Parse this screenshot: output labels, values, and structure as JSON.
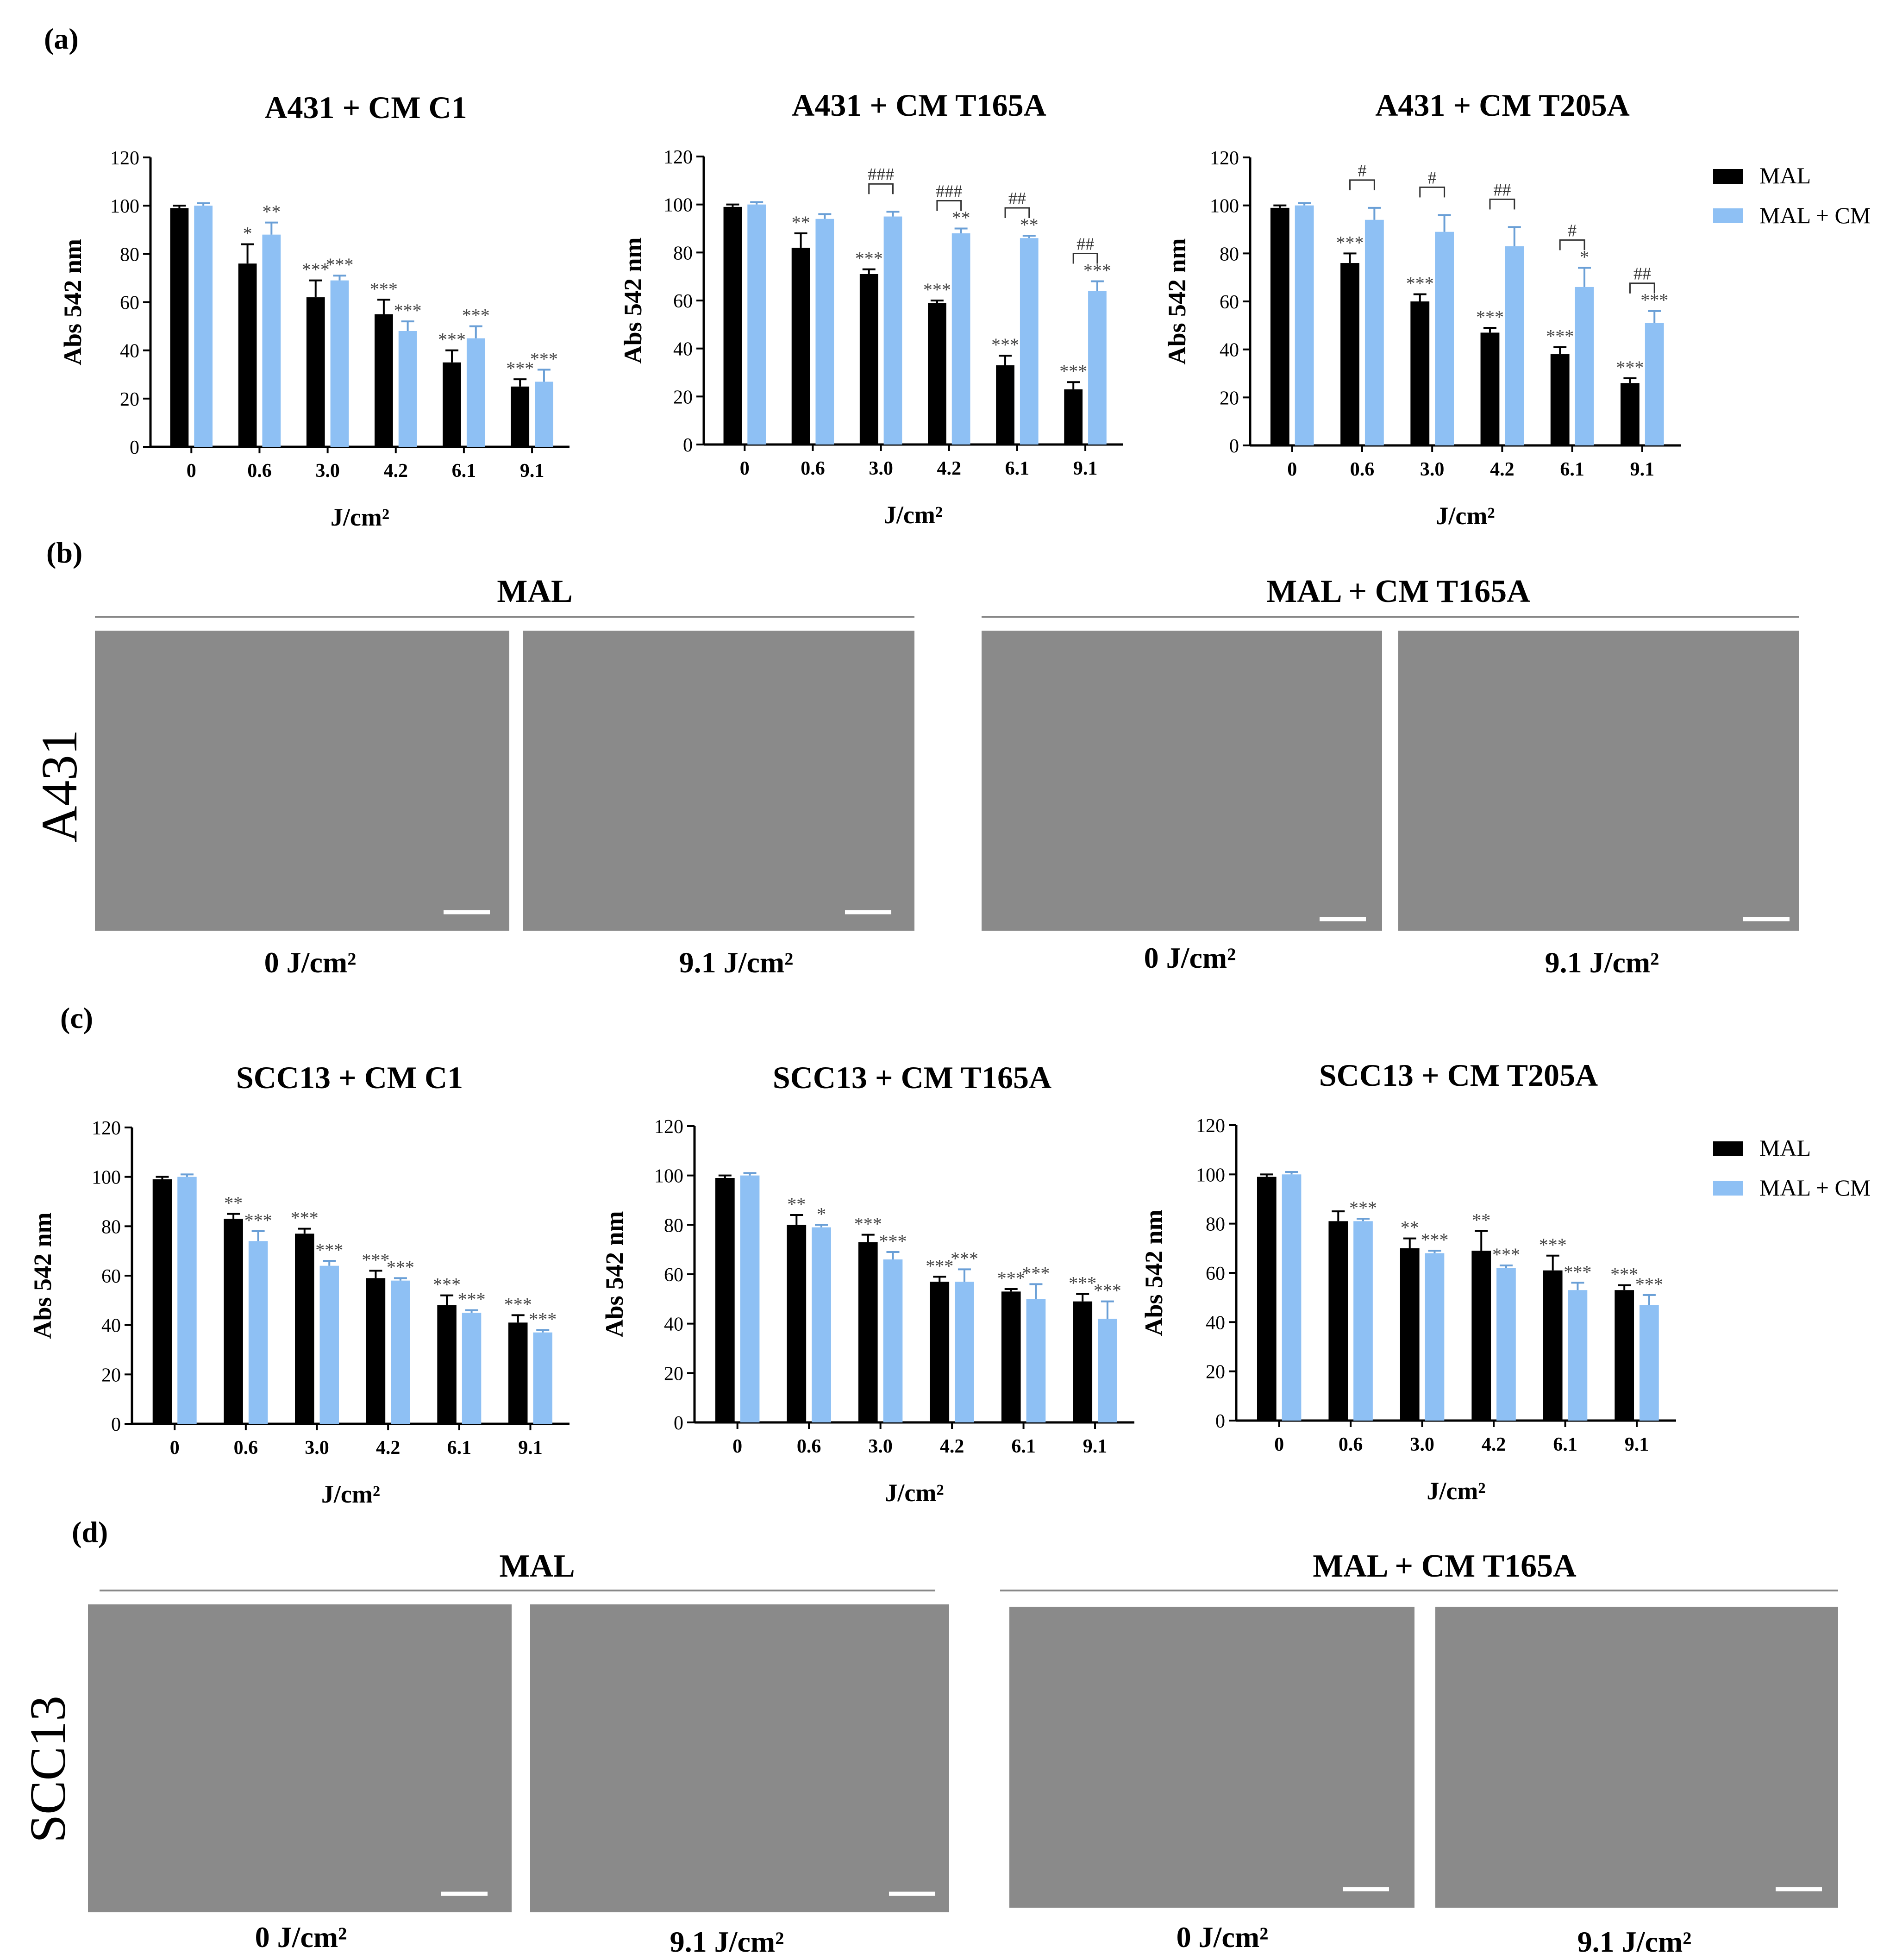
{
  "panels": {
    "a": "(a)",
    "b": "(b)",
    "c": "(c)",
    "d": "(d)"
  },
  "colors": {
    "mal": "#000000",
    "mal_cm": "#8ec0f4",
    "text": "#000000",
    "sig": "#444444"
  },
  "legend": {
    "mal": "MAL",
    "mal_cm": "MAL + CM"
  },
  "micro": {
    "b": {
      "row_label": "A431",
      "group1": "MAL",
      "group2": "MAL + CM T165A",
      "captions": [
        "0 J/cm²",
        "9.1 J/cm²",
        "0 J/cm²",
        "9.1 J/cm²"
      ]
    },
    "d": {
      "row_label": "SCC13",
      "group1": "MAL",
      "group2": "MAL + CM T165A",
      "captions": [
        "0 J/cm²",
        "9.1 J/cm²",
        "0 J/cm²",
        "9.1 J/cm²"
      ]
    }
  },
  "chart_data": [
    {
      "type": "bar",
      "title": "A431 + CM C1",
      "xlabel": "J/cm²",
      "ylabel": "Abs 542 nm",
      "ylim": [
        0,
        120
      ],
      "yticks": [
        0,
        20,
        40,
        60,
        80,
        100,
        120
      ],
      "categories": [
        "0",
        "0.6",
        "3.0",
        "4.2",
        "6.1",
        "9.1"
      ],
      "series": [
        {
          "name": "MAL",
          "values": [
            99,
            76,
            62,
            55,
            35,
            25
          ],
          "errors": [
            1,
            8,
            7,
            6,
            5,
            3
          ],
          "sig": [
            "",
            "*",
            "***",
            "***",
            "***",
            "***"
          ]
        },
        {
          "name": "MAL + CM",
          "values": [
            100,
            88,
            69,
            48,
            45,
            27
          ],
          "errors": [
            1,
            5,
            2,
            4,
            5,
            5
          ],
          "sig": [
            "",
            "**",
            "***",
            "***",
            "***",
            "***"
          ]
        }
      ],
      "brackets": [],
      "legend": false
    },
    {
      "type": "bar",
      "title": "A431 + CM T165A",
      "xlabel": "J/cm²",
      "ylabel": "Abs 542 nm",
      "ylim": [
        0,
        120
      ],
      "yticks": [
        0,
        20,
        40,
        60,
        80,
        100,
        120
      ],
      "categories": [
        "0",
        "0.6",
        "3.0",
        "4.2",
        "6.1",
        "9.1"
      ],
      "series": [
        {
          "name": "MAL",
          "values": [
            99,
            82,
            71,
            59,
            33,
            23
          ],
          "errors": [
            1,
            6,
            2,
            1,
            4,
            3
          ],
          "sig": [
            "",
            "**",
            "***",
            "***",
            "***",
            "***"
          ]
        },
        {
          "name": "MAL + CM",
          "values": [
            100,
            94,
            95,
            88,
            86,
            64
          ],
          "errors": [
            1,
            2,
            2,
            2,
            1,
            4
          ],
          "sig": [
            "",
            "",
            "",
            "**",
            "**",
            "***"
          ]
        }
      ],
      "brackets": [
        {
          "cat": 2,
          "label": "###"
        },
        {
          "cat": 3,
          "label": "###"
        },
        {
          "cat": 4,
          "label": "##"
        },
        {
          "cat": 5,
          "label": "##"
        }
      ],
      "legend": false
    },
    {
      "type": "bar",
      "title": "A431 + CM T205A",
      "xlabel": "J/cm²",
      "ylabel": "Abs 542 nm",
      "ylim": [
        0,
        120
      ],
      "yticks": [
        0,
        20,
        40,
        60,
        80,
        100,
        120
      ],
      "categories": [
        "0",
        "0.6",
        "3.0",
        "4.2",
        "6.1",
        "9.1"
      ],
      "series": [
        {
          "name": "MAL",
          "values": [
            99,
            76,
            60,
            47,
            38,
            26
          ],
          "errors": [
            1,
            4,
            3,
            2,
            3,
            2
          ],
          "sig": [
            "",
            "***",
            "***",
            "***",
            "***",
            "***"
          ]
        },
        {
          "name": "MAL + CM",
          "values": [
            100,
            94,
            89,
            83,
            66,
            51
          ],
          "errors": [
            1,
            5,
            7,
            8,
            8,
            5
          ],
          "sig": [
            "",
            "",
            "",
            "",
            "*",
            "***"
          ]
        }
      ],
      "brackets": [
        {
          "cat": 1,
          "label": "#"
        },
        {
          "cat": 2,
          "label": "#"
        },
        {
          "cat": 3,
          "label": "##"
        },
        {
          "cat": 4,
          "label": "#"
        },
        {
          "cat": 5,
          "label": "##"
        }
      ],
      "legend": true
    },
    {
      "type": "bar",
      "title": "SCC13 + CM C1",
      "xlabel": "J/cm²",
      "ylabel": "Abs 542 nm",
      "ylim": [
        0,
        120
      ],
      "yticks": [
        0,
        20,
        40,
        60,
        80,
        100,
        120
      ],
      "categories": [
        "0",
        "0.6",
        "3.0",
        "4.2",
        "6.1",
        "9.1"
      ],
      "series": [
        {
          "name": "MAL",
          "values": [
            99,
            83,
            77,
            59,
            48,
            41
          ],
          "errors": [
            1,
            2,
            2,
            3,
            4,
            3
          ],
          "sig": [
            "",
            "**",
            "***",
            "***",
            "***",
            "***"
          ]
        },
        {
          "name": "MAL + CM",
          "values": [
            100,
            74,
            64,
            58,
            45,
            37
          ],
          "errors": [
            1,
            4,
            2,
            1,
            1,
            1
          ],
          "sig": [
            "",
            "***",
            "***",
            "***",
            "***",
            "***"
          ]
        }
      ],
      "brackets": [],
      "legend": false
    },
    {
      "type": "bar",
      "title": "SCC13 + CM T165A",
      "xlabel": "J/cm²",
      "ylabel": "Abs 542 nm",
      "ylim": [
        0,
        120
      ],
      "yticks": [
        0,
        20,
        40,
        60,
        80,
        100,
        120
      ],
      "categories": [
        "0",
        "0.6",
        "3.0",
        "4.2",
        "6.1",
        "9.1"
      ],
      "series": [
        {
          "name": "MAL",
          "values": [
            99,
            80,
            73,
            57,
            53,
            49
          ],
          "errors": [
            1,
            4,
            3,
            2,
            1,
            3
          ],
          "sig": [
            "",
            "**",
            "***",
            "***",
            "***",
            "***"
          ]
        },
        {
          "name": "MAL + CM",
          "values": [
            100,
            79,
            66,
            57,
            50,
            42
          ],
          "errors": [
            1,
            1,
            3,
            5,
            6,
            7
          ],
          "sig": [
            "",
            "*",
            "***",
            "***",
            "***",
            "***"
          ]
        }
      ],
      "brackets": [],
      "legend": false
    },
    {
      "type": "bar",
      "title": "SCC13 + CM T205A",
      "xlabel": "J/cm²",
      "ylabel": "Abs 542 nm",
      "ylim": [
        0,
        120
      ],
      "yticks": [
        0,
        20,
        40,
        60,
        80,
        100,
        120
      ],
      "categories": [
        "0",
        "0.6",
        "3.0",
        "4.2",
        "6.1",
        "9.1"
      ],
      "series": [
        {
          "name": "MAL",
          "values": [
            99,
            81,
            70,
            69,
            61,
            53
          ],
          "errors": [
            1,
            4,
            4,
            8,
            6,
            2
          ],
          "sig": [
            "",
            "",
            "**",
            "**",
            "***",
            "***"
          ]
        },
        {
          "name": "MAL + CM",
          "values": [
            100,
            81,
            68,
            62,
            53,
            47
          ],
          "errors": [
            1,
            1,
            1,
            1,
            3,
            4
          ],
          "sig": [
            "",
            "***",
            "***",
            "***",
            "***",
            "***"
          ]
        }
      ],
      "brackets": [],
      "legend": true
    }
  ]
}
